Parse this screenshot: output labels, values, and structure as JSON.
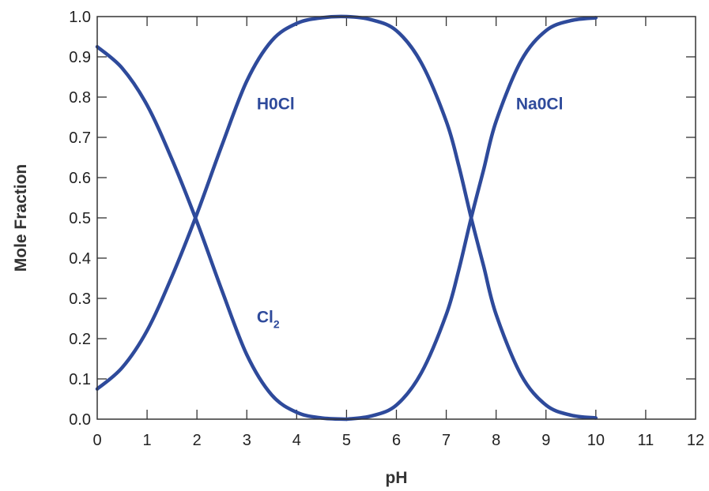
{
  "chart_data": {
    "type": "line",
    "xlabel": "pH",
    "ylabel": "Mole Fraction",
    "xlim": [
      0,
      12
    ],
    "ylim": [
      0,
      1
    ],
    "xticks": [
      "0",
      "1",
      "2",
      "3",
      "4",
      "5",
      "6",
      "7",
      "8",
      "9",
      "10",
      "11",
      "12"
    ],
    "yticks": [
      "0.0",
      "0.1",
      "0.2",
      "0.3",
      "0.4",
      "0.5",
      "0.6",
      "0.7",
      "0.8",
      "0.9",
      "1.0"
    ],
    "grid": false,
    "line_color": "#2e4a9b",
    "series": [
      {
        "name": "Cl",
        "name_subscript": "2",
        "label_at": [
          3.2,
          0.24
        ],
        "x": [
          0,
          0.5,
          1,
          1.5,
          2,
          2.5,
          3,
          3.5,
          4,
          4.5,
          5
        ],
        "y": [
          0.925,
          0.872,
          0.78,
          0.645,
          0.49,
          0.32,
          0.16,
          0.06,
          0.017,
          0.003,
          0.0
        ]
      },
      {
        "name": "H0Cl",
        "label_at": [
          3.2,
          0.77
        ],
        "x": [
          0,
          0.5,
          1,
          1.5,
          2,
          2.5,
          3,
          3.5,
          4,
          4.5,
          5,
          5.5,
          6,
          6.5,
          7,
          7.25,
          7.5,
          7.75,
          8,
          8.5,
          9,
          9.5,
          10
        ],
        "y": [
          0.075,
          0.128,
          0.22,
          0.355,
          0.51,
          0.68,
          0.84,
          0.94,
          0.983,
          0.997,
          1.0,
          0.992,
          0.965,
          0.885,
          0.74,
          0.63,
          0.5,
          0.38,
          0.26,
          0.11,
          0.035,
          0.01,
          0.003
        ]
      },
      {
        "name": "Na0Cl",
        "label_at": [
          8.4,
          0.77
        ],
        "x": [
          5,
          5.5,
          6,
          6.5,
          7,
          7.25,
          7.5,
          7.75,
          8,
          8.5,
          9,
          9.5,
          10
        ],
        "y": [
          0.0,
          0.008,
          0.035,
          0.115,
          0.26,
          0.37,
          0.5,
          0.62,
          0.74,
          0.89,
          0.965,
          0.99,
          0.997
        ]
      }
    ]
  }
}
